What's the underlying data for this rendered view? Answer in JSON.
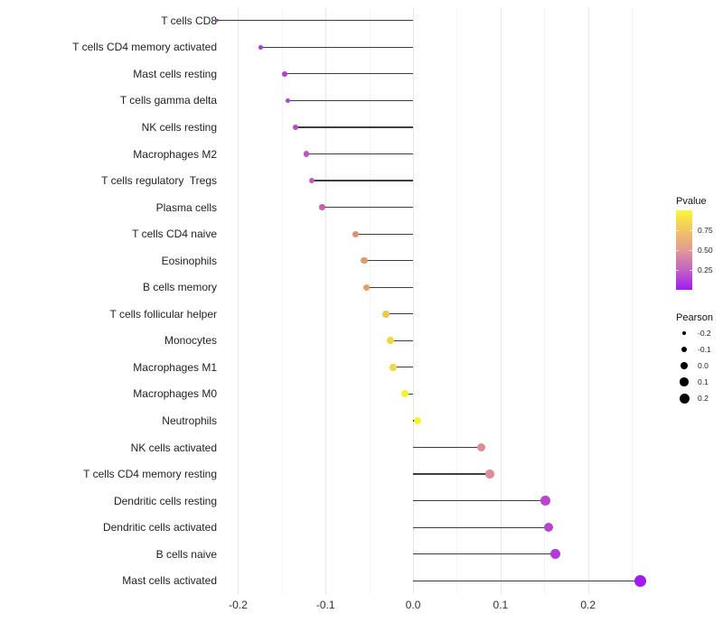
{
  "chart_data": {
    "type": "scatter",
    "subtype": "horizontal-lollipop",
    "title": "",
    "xlabel": "",
    "ylabel": "",
    "xlim": [
      -0.218,
      0.286
    ],
    "x_ticks": [
      -0.2,
      -0.1,
      0.0,
      0.1,
      0.2
    ],
    "x_tick_labels": [
      "-0.2",
      "-0.1",
      "0.0",
      "0.1",
      "0.2"
    ],
    "x_minor_ticks": [
      -0.15,
      -0.05,
      0.05,
      0.15,
      0.25
    ],
    "grid": "vertical-only",
    "legend_position": "right",
    "categories": [
      "T cells CD8",
      "T cells CD4 memory activated",
      "Mast cells resting",
      "T cells gamma delta",
      "NK cells resting",
      "Macrophages M2",
      "T cells regulatory  Tregs",
      "Plasma cells",
      "T cells CD4 naive",
      "Eosinophils",
      "B cells memory",
      "T cells follicular helper",
      "Monocytes",
      "Macrophages M1",
      "Macrophages M0",
      "Neutrophils",
      "NK cells activated",
      "T cells CD4 memory resting",
      "Dendritic cells resting",
      "Dendritic cells activated",
      "B cells naive",
      "Mast cells activated"
    ],
    "points": [
      {
        "label": "T cells CD8",
        "pearson": -0.224,
        "pvalue_est": 0.07,
        "color": "#A02BE0",
        "size": 3.2
      },
      {
        "label": "T cells CD4 memory activated",
        "pearson": -0.174,
        "pvalue_est": 0.13,
        "color": "#AC3AD6",
        "size": 5.0
      },
      {
        "label": "Mast cells resting",
        "pearson": -0.147,
        "pvalue_est": 0.15,
        "color": "#B144CE",
        "size": 5.6
      },
      {
        "label": "T cells gamma delta",
        "pearson": -0.143,
        "pvalue_est": 0.15,
        "color": "#B144CE",
        "size": 5.6
      },
      {
        "label": "NK cells resting",
        "pearson": -0.134,
        "pvalue_est": 0.18,
        "color": "#B54CC7",
        "size": 5.8
      },
      {
        "label": "Macrophages M2",
        "pearson": -0.122,
        "pvalue_est": 0.23,
        "color": "#BC58BC",
        "size": 6.1
      },
      {
        "label": "T cells regulatory  Tregs",
        "pearson": -0.116,
        "pvalue_est": 0.25,
        "color": "#BE5DB7",
        "size": 6.2
      },
      {
        "label": "Plasma cells",
        "pearson": -0.104,
        "pvalue_est": 0.28,
        "color": "#C163B1",
        "size": 6.5
      },
      {
        "label": "T cells CD4 naive",
        "pearson": -0.066,
        "pvalue_est": 0.56,
        "color": "#DB9175",
        "size": 7.1
      },
      {
        "label": "Eosinophils",
        "pearson": -0.056,
        "pvalue_est": 0.6,
        "color": "#DF9B6C",
        "size": 7.3
      },
      {
        "label": "B cells memory",
        "pearson": -0.053,
        "pvalue_est": 0.62,
        "color": "#E1A065",
        "size": 7.3
      },
      {
        "label": "T cells follicular helper",
        "pearson": -0.031,
        "pvalue_est": 0.78,
        "color": "#ECCA4D",
        "size": 7.7
      },
      {
        "label": "Monocytes",
        "pearson": -0.026,
        "pvalue_est": 0.83,
        "color": "#F0D844",
        "size": 7.8
      },
      {
        "label": "Macrophages M1",
        "pearson": -0.023,
        "pvalue_est": 0.83,
        "color": "#F0D844",
        "size": 7.8
      },
      {
        "label": "Macrophages M0",
        "pearson": -0.009,
        "pvalue_est": 0.94,
        "color": "#F7F135",
        "size": 8.1
      },
      {
        "label": "Neutrophils",
        "pearson": 0.005,
        "pvalue_est": 0.95,
        "color": "#F8F433",
        "size": 8.3
      },
      {
        "label": "NK cells activated",
        "pearson": 0.078,
        "pvalue_est": 0.5,
        "color": "#E08D90",
        "size": 9.4
      },
      {
        "label": "T cells CD4 memory resting",
        "pearson": 0.088,
        "pvalue_est": 0.5,
        "color": "#E08B96",
        "size": 9.6
      },
      {
        "label": "Dendritic cells resting",
        "pearson": 0.151,
        "pvalue_est": 0.17,
        "color": "#B748CB",
        "size": 10.6
      },
      {
        "label": "Dendritic cells activated",
        "pearson": 0.155,
        "pvalue_est": 0.16,
        "color": "#B846CD",
        "size": 10.7
      },
      {
        "label": "B cells naive",
        "pearson": 0.163,
        "pvalue_est": 0.12,
        "color": "#B43AD9",
        "size": 10.9
      },
      {
        "label": "Mast cells activated",
        "pearson": 0.26,
        "pvalue_est": 0.03,
        "color": "#A21BEE",
        "size": 13.2
      }
    ],
    "legend_pvalue": {
      "title": "Pvalue",
      "tick_labels": [
        "0.75",
        "0.50",
        "0.25"
      ],
      "gradient_top_to_bottom": [
        "#FAF736",
        "#F2C464",
        "#E29A94",
        "#C263C4",
        "#A11BF2"
      ]
    },
    "legend_pearson": {
      "title": "Pearson",
      "items": [
        {
          "label": "-0.2",
          "diameter": 4.5
        },
        {
          "label": "-0.1",
          "diameter": 6.5
        },
        {
          "label": "0.0",
          "diameter": 8.0
        },
        {
          "label": "0.1",
          "diameter": 9.5
        },
        {
          "label": "0.2",
          "diameter": 11.0
        }
      ]
    },
    "stem_color": "#3d3d3d"
  }
}
